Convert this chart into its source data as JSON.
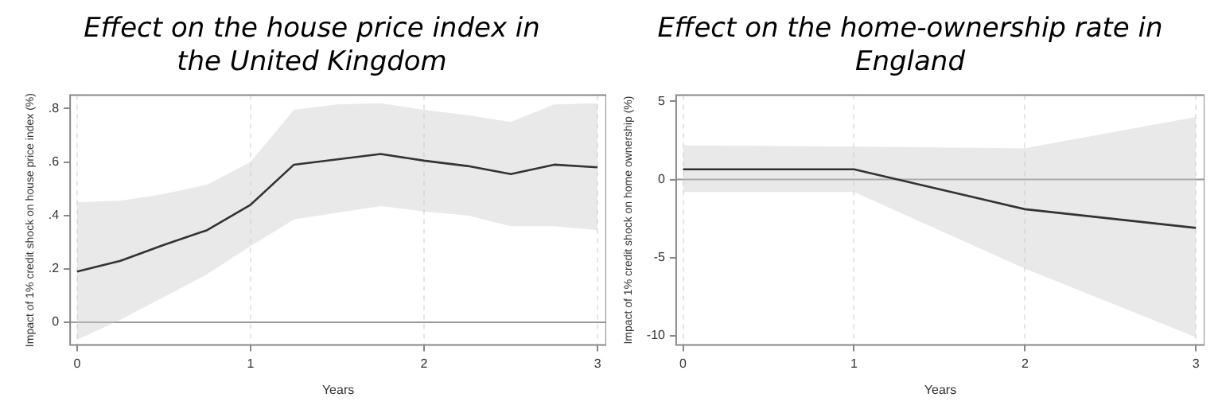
{
  "chart_data": [
    {
      "type": "line",
      "title": "Effect on the house price index in the United Kingdom",
      "xlabel": "Years",
      "ylabel": "Impact of 1% credit shock on house price index (%)",
      "x": [
        0,
        0.25,
        0.5,
        0.75,
        1,
        1.25,
        1.5,
        1.75,
        2,
        2.25,
        2.5,
        2.75,
        3
      ],
      "series": [
        {
          "color": "#333333",
          "values": [
            0.19,
            0.23,
            0.29,
            0.345,
            0.44,
            0.59,
            0.61,
            0.63,
            0.605,
            0.585,
            0.555,
            0.59,
            0.58
          ],
          "lower": [
            -0.065,
            0.01,
            0.095,
            0.18,
            0.285,
            0.385,
            0.41,
            0.435,
            0.415,
            0.4,
            0.36,
            0.36,
            0.345
          ],
          "upper": [
            0.45,
            0.455,
            0.48,
            0.515,
            0.6,
            0.795,
            0.815,
            0.82,
            0.795,
            0.775,
            0.75,
            0.815,
            0.82
          ]
        }
      ],
      "xlim": [
        -0.04,
        3.05
      ],
      "ylim": [
        -0.085,
        0.85
      ],
      "xticks": [
        0,
        1,
        2,
        3
      ],
      "yticks": [
        0,
        {
          "value": 0.2,
          "label": ".2"
        },
        {
          "value": 0.4,
          "label": ".4"
        },
        {
          "value": 0.6,
          "label": ".6"
        },
        {
          "value": 0.8,
          "label": ".8"
        }
      ],
      "grid": "x",
      "ref_lines": [
        {
          "axis": "y",
          "value": 0,
          "color": "#999999"
        }
      ]
    },
    {
      "type": "line",
      "title": "Effect on the home-ownership rate in England",
      "xlabel": "Years",
      "ylabel": "Impact of 1% credit shock on home ownership (%)",
      "x": [
        0,
        1,
        2,
        3
      ],
      "series": [
        {
          "color": "#333333",
          "values": [
            0.65,
            0.65,
            -1.9,
            -3.1
          ],
          "lower": [
            -0.8,
            -0.8,
            -5.7,
            -10.1
          ],
          "upper": [
            2.2,
            2.1,
            2.0,
            4.0
          ]
        }
      ],
      "xlim": [
        -0.04,
        3.05
      ],
      "ylim": [
        -10.6,
        5.4
      ],
      "xticks": [
        0,
        1,
        2,
        3
      ],
      "yticks": [
        -10,
        -5,
        0,
        5
      ],
      "grid": "x",
      "ref_lines": [
        {
          "axis": "y",
          "value": 0,
          "color": "#999999"
        }
      ]
    }
  ]
}
